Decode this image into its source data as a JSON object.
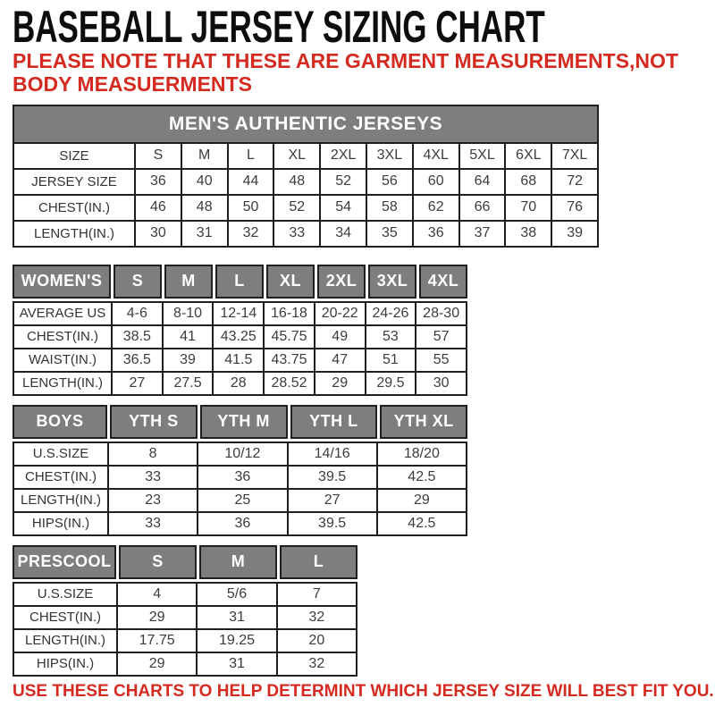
{
  "page": {
    "title": "BASEBALL JERSEY SIZING CHART",
    "subtitle": "PLEASE NOTE THAT THESE ARE GARMENT MEASUREMENTS,NOT BODY MEASUERMENTS",
    "footer": "USE THESE CHARTS TO HELP DETERMINT WHICH JERSEY SIZE WILL BEST FIT YOU.",
    "colors": {
      "accent_red": "#d42a20",
      "header_gray": "#7e7e7e",
      "border_dark": "#1f1f1f",
      "text_dark": "#3c3c3c"
    }
  },
  "tables": [
    {
      "id": "mens",
      "banner": "MEN'S AUTHENTIC JERSEYS",
      "rows": [
        {
          "label": "SIZE",
          "values": [
            "S",
            "M",
            "L",
            "XL",
            "2XL",
            "3XL",
            "4XL",
            "5XL",
            "6XL",
            "7XL"
          ]
        },
        {
          "label": "JERSEY SIZE",
          "values": [
            "36",
            "40",
            "44",
            "48",
            "52",
            "56",
            "60",
            "64",
            "68",
            "72"
          ]
        },
        {
          "label": "CHEST(IN.)",
          "values": [
            "46",
            "48",
            "50",
            "52",
            "54",
            "58",
            "62",
            "66",
            "70",
            "76"
          ]
        },
        {
          "label": "LENGTH(IN.)",
          "values": [
            "30",
            "31",
            "32",
            "33",
            "34",
            "35",
            "36",
            "37",
            "38",
            "39"
          ]
        }
      ]
    },
    {
      "id": "womens",
      "header_cells": [
        "WOMEN'S",
        "S",
        "M",
        "L",
        "XL",
        "2XL",
        "3XL",
        "4XL"
      ],
      "rows": [
        {
          "label": "AVERAGE US",
          "values": [
            "4-6",
            "8-10",
            "12-14",
            "16-18",
            "20-22",
            "24-26",
            "28-30"
          ]
        },
        {
          "label": "CHEST(IN.)",
          "values": [
            "38.5",
            "41",
            "43.25",
            "45.75",
            "49",
            "53",
            "57"
          ]
        },
        {
          "label": "WAIST(IN.)",
          "values": [
            "36.5",
            "39",
            "41.5",
            "43.75",
            "47",
            "51",
            "55"
          ]
        },
        {
          "label": "LENGTH(IN.)",
          "values": [
            "27",
            "27.5",
            "28",
            "28.52",
            "29",
            "29.5",
            "30"
          ]
        }
      ]
    },
    {
      "id": "boys",
      "header_cells": [
        "BOYS",
        "YTH S",
        "YTH M",
        "YTH L",
        "YTH XL"
      ],
      "rows": [
        {
          "label": "U.S.SIZE",
          "values": [
            "8",
            "10/12",
            "14/16",
            "18/20"
          ]
        },
        {
          "label": "CHEST(IN.)",
          "values": [
            "33",
            "36",
            "39.5",
            "42.5"
          ]
        },
        {
          "label": "LENGTH(IN.)",
          "values": [
            "23",
            "25",
            "27",
            "29"
          ]
        },
        {
          "label": "HIPS(IN.)",
          "values": [
            "33",
            "36",
            "39.5",
            "42.5"
          ]
        }
      ]
    },
    {
      "id": "prescool",
      "header_cells": [
        "PRESCOOL",
        "S",
        "M",
        "L"
      ],
      "rows": [
        {
          "label": "U.S.SIZE",
          "values": [
            "4",
            "5/6",
            "7"
          ]
        },
        {
          "label": "CHEST(IN.)",
          "values": [
            "29",
            "31",
            "32"
          ]
        },
        {
          "label": "LENGTH(IN.)",
          "values": [
            "17.75",
            "19.25",
            "20"
          ]
        },
        {
          "label": "HIPS(IN.)",
          "values": [
            "29",
            "31",
            "32"
          ]
        }
      ]
    }
  ]
}
